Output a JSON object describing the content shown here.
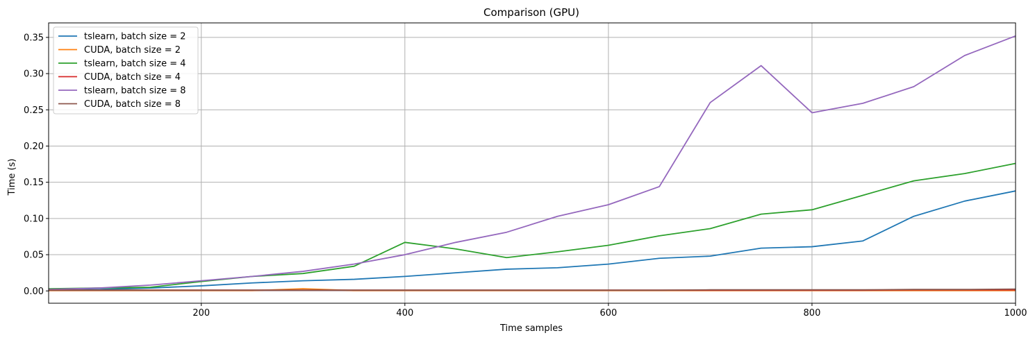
{
  "chart_data": {
    "type": "line",
    "title": "Comparison (GPU)",
    "xlabel": "Time samples",
    "ylabel": "Time (s)",
    "xlim": [
      50,
      1000
    ],
    "ylim": [
      -0.017,
      0.37
    ],
    "xticks": [
      200,
      400,
      600,
      800,
      1000
    ],
    "yticks": [
      0.0,
      0.05,
      0.1,
      0.15,
      0.2,
      0.25,
      0.3,
      0.35
    ],
    "ytick_labels": [
      "0.00",
      "0.05",
      "0.10",
      "0.15",
      "0.20",
      "0.25",
      "0.30",
      "0.35"
    ],
    "grid": true,
    "legend_position": "top-left",
    "x": [
      50,
      100,
      150,
      200,
      250,
      300,
      350,
      400,
      450,
      500,
      550,
      600,
      650,
      700,
      750,
      800,
      850,
      900,
      950,
      1000
    ],
    "series": [
      {
        "name": "tslearn, batch size = 2",
        "color": "#1f77b4",
        "values": [
          0.001,
          0.002,
          0.004,
          0.007,
          0.011,
          0.014,
          0.016,
          0.02,
          0.025,
          0.03,
          0.032,
          0.037,
          0.045,
          0.048,
          0.059,
          0.061,
          0.069,
          0.103,
          0.124,
          0.138
        ]
      },
      {
        "name": "CUDA, batch size = 2",
        "color": "#ff7f0e",
        "values": [
          0.0005,
          0.0005,
          0.0005,
          0.0005,
          0.0005,
          0.003,
          0.0005,
          0.0005,
          0.0005,
          0.0005,
          0.0005,
          0.0005,
          0.0005,
          0.0005,
          0.0005,
          0.0005,
          0.0005,
          0.0005,
          0.0005,
          0.0005
        ]
      },
      {
        "name": "tslearn, batch size = 4",
        "color": "#2ca02c",
        "values": [
          0.003,
          0.004,
          0.005,
          0.013,
          0.02,
          0.024,
          0.034,
          0.067,
          0.058,
          0.046,
          0.054,
          0.063,
          0.076,
          0.086,
          0.106,
          0.112,
          0.132,
          0.152,
          0.162,
          0.176
        ]
      },
      {
        "name": "CUDA, batch size = 4",
        "color": "#d62728",
        "values": [
          0.001,
          0.001,
          0.001,
          0.001,
          0.001,
          0.001,
          0.001,
          0.001,
          0.001,
          0.001,
          0.001,
          0.001,
          0.001,
          0.001,
          0.001,
          0.001,
          0.001,
          0.0015,
          0.0015,
          0.0015
        ]
      },
      {
        "name": "tslearn, batch size = 8",
        "color": "#9467bd",
        "values": [
          0.002,
          0.004,
          0.008,
          0.014,
          0.02,
          0.027,
          0.037,
          0.05,
          0.067,
          0.081,
          0.103,
          0.119,
          0.144,
          0.26,
          0.311,
          0.246,
          0.259,
          0.282,
          0.325,
          0.352
        ]
      },
      {
        "name": "CUDA, batch size = 8",
        "color": "#8c564b",
        "values": [
          0.001,
          0.001,
          0.001,
          0.001,
          0.001,
          0.001,
          0.001,
          0.001,
          0.001,
          0.001,
          0.001,
          0.001,
          0.001,
          0.0015,
          0.0015,
          0.0015,
          0.0015,
          0.002,
          0.002,
          0.0025
        ]
      }
    ]
  }
}
